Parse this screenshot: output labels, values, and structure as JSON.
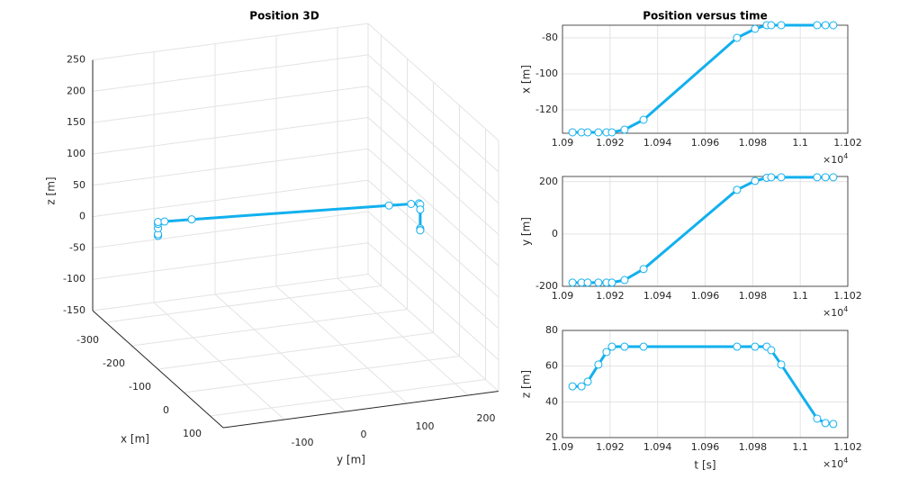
{
  "chart_data": [
    {
      "type": "line3d",
      "title": "Position 3D",
      "x_label": "x [m]",
      "y_label": "y [m]",
      "z_label": "z [m]",
      "x": [
        -132.5,
        -132.5,
        -132.5,
        -132.5,
        -132.5,
        -132.5,
        -131,
        -125.5,
        -80,
        -75,
        -73,
        -73,
        -73,
        -73,
        -73,
        -73
      ],
      "y": [
        -186,
        -186,
        -186,
        -186,
        -186,
        -186,
        -176,
        -134,
        169,
        203,
        215,
        217,
        217,
        217,
        217,
        217
      ],
      "z": [
        48.7,
        48.7,
        51.3,
        60.9,
        67.9,
        70.9,
        70.9,
        70.9,
        70.9,
        70.9,
        70.9,
        68.9,
        60.9,
        30.6,
        28.1,
        27.6
      ],
      "xlim": [
        -350,
        150
      ],
      "ylim": [
        -200,
        250
      ],
      "zlim": [
        -150,
        250
      ],
      "xticks": [
        -300,
        -200,
        -100,
        0,
        100
      ],
      "yticks": [
        -100,
        0,
        100,
        200
      ],
      "zticks": [
        -150,
        -100,
        -50,
        0,
        50,
        100,
        150,
        200,
        250
      ],
      "color": "#12b0ee",
      "grid": true
    },
    {
      "type": "line",
      "title": "Position versus time",
      "y_label": "x [m]",
      "x": [
        1.09042,
        1.0908,
        1.09106,
        1.09151,
        1.09185,
        1.09208,
        1.09261,
        1.09341,
        1.09734,
        1.0981,
        1.09859,
        1.09878,
        1.0992,
        1.10071,
        1.10106,
        1.10139
      ],
      "values": [
        -132.5,
        -132.5,
        -132.5,
        -132.5,
        -132.5,
        -132.5,
        -131,
        -125.5,
        -80,
        -75,
        -73,
        -73,
        -73,
        -73,
        -73,
        -73
      ],
      "xlim": [
        1.09,
        1.102
      ],
      "xticks": [
        1.09,
        1.092,
        1.094,
        1.096,
        1.098,
        1.1,
        1.102
      ],
      "ylim": [
        -133,
        -73
      ],
      "yticks": [
        -120,
        -100,
        -80
      ],
      "x_multiplier": "×10",
      "x_exponent": "4",
      "color": "#12b0ee",
      "grid": true
    },
    {
      "type": "line",
      "y_label": "y [m]",
      "x": [
        1.09042,
        1.0908,
        1.09106,
        1.09151,
        1.09185,
        1.09208,
        1.09261,
        1.09341,
        1.09734,
        1.0981,
        1.09859,
        1.09878,
        1.0992,
        1.10071,
        1.10106,
        1.10139
      ],
      "values": [
        -186,
        -186,
        -186,
        -186,
        -186,
        -186,
        -176,
        -134,
        169,
        203,
        215,
        217,
        217,
        217,
        217,
        217
      ],
      "xlim": [
        1.09,
        1.102
      ],
      "xticks": [
        1.09,
        1.092,
        1.094,
        1.096,
        1.098,
        1.1,
        1.102
      ],
      "ylim": [
        -200,
        220
      ],
      "yticks": [
        -200,
        0,
        200
      ],
      "x_multiplier": "×10",
      "x_exponent": "4",
      "color": "#12b0ee",
      "grid": true
    },
    {
      "type": "line",
      "y_label": "z [m]",
      "x_label": "t [s]",
      "x": [
        1.09042,
        1.0908,
        1.09106,
        1.09151,
        1.09185,
        1.09208,
        1.09261,
        1.09341,
        1.09734,
        1.0981,
        1.09859,
        1.09878,
        1.0992,
        1.10071,
        1.10106,
        1.10139
      ],
      "values": [
        48.7,
        48.7,
        51.3,
        60.9,
        67.9,
        70.9,
        70.9,
        70.9,
        70.9,
        70.9,
        70.9,
        68.9,
        60.9,
        30.6,
        28.1,
        27.6
      ],
      "xlim": [
        1.09,
        1.102
      ],
      "xticks": [
        1.09,
        1.092,
        1.094,
        1.096,
        1.098,
        1.1,
        1.102
      ],
      "ylim": [
        20,
        80
      ],
      "yticks": [
        20,
        40,
        60,
        80
      ],
      "x_multiplier": "×10",
      "x_exponent": "4",
      "color": "#12b0ee",
      "grid": true
    }
  ]
}
